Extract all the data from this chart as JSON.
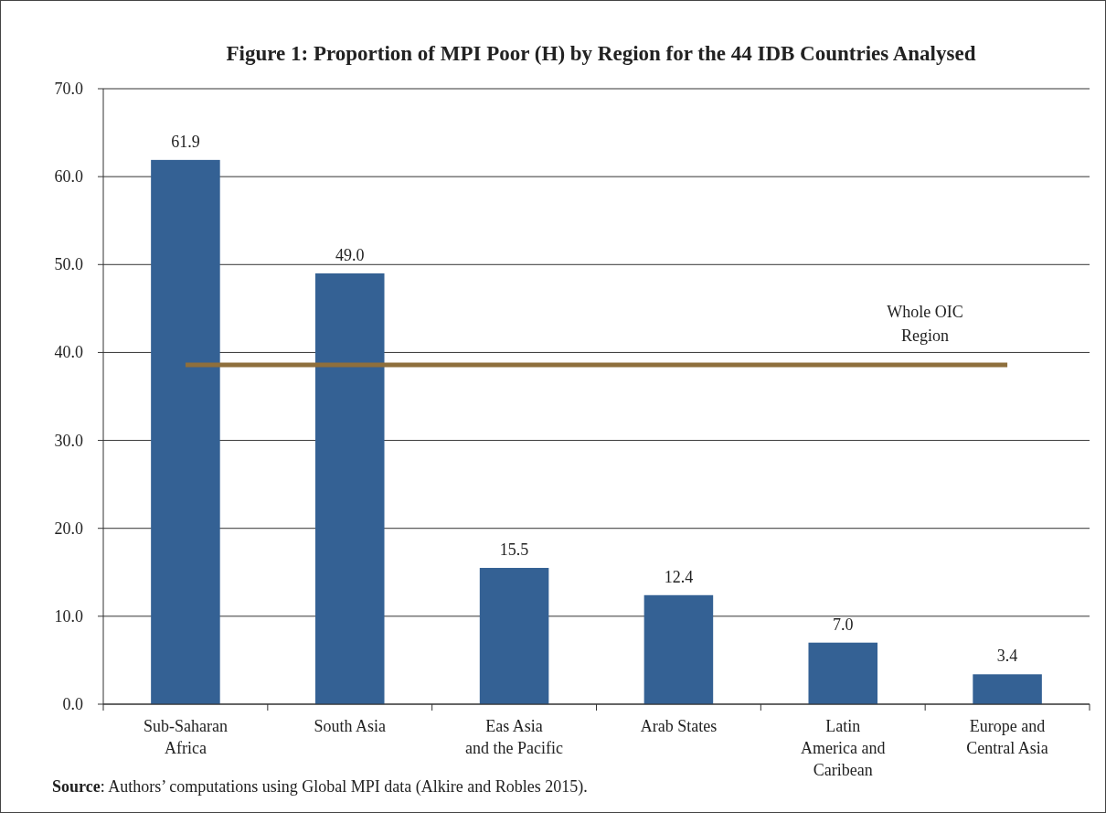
{
  "chart_data": {
    "type": "bar",
    "title": "Figure 1: Proportion of MPI Poor (H) by Region for the 44 IDB Countries Analysed",
    "categories": [
      "Sub-Saharan\nAfrica",
      "South Asia",
      "Eas Asia\nand the Pacific",
      "Arab States",
      "Latin\nAmerica and\nCaribean",
      "Europe and\nCentral Asia"
    ],
    "values": [
      61.9,
      49.0,
      15.5,
      12.4,
      7.0,
      3.4
    ],
    "value_labels": [
      "61.9",
      "49.0",
      "15.5",
      "12.4",
      "7.0",
      "3.4"
    ],
    "color": "#346194",
    "ylim": [
      0,
      70
    ],
    "yticks": [
      {
        "value": 0,
        "label": "0.0"
      },
      {
        "value": 10,
        "label": "10.0"
      },
      {
        "value": 20,
        "label": "20.0"
      },
      {
        "value": 30,
        "label": "30.0"
      },
      {
        "value": 40,
        "label": "40.0"
      },
      {
        "value": 50,
        "label": "50.0"
      },
      {
        "value": 60,
        "label": "60.0"
      },
      {
        "value": 70,
        "label": "70.0"
      }
    ],
    "grid": "y",
    "ref_lines": [
      {
        "axis": "y",
        "value": 38.6,
        "label": "Whole OIC\nRegion",
        "color": "#8e6f3c"
      }
    ],
    "annotations": [
      "Source: Authors’ computations using Global MPI data (Alkire and Robles 2015)."
    ]
  }
}
